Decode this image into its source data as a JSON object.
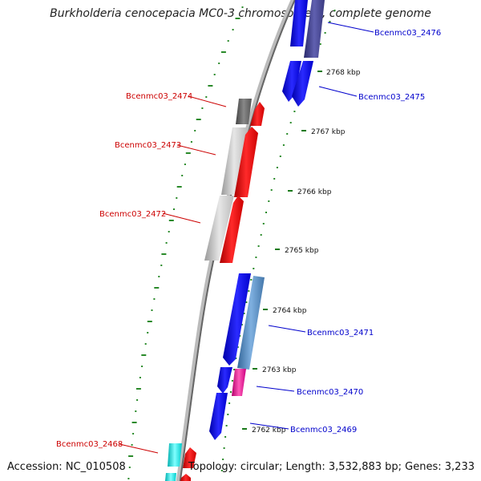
{
  "title": "Burkholderia cenocepacia MC0-3 chromosome 1, complete genome",
  "footer": {
    "accession": "Accession: NC_010508",
    "summary": "Topology: circular; Length: 3,532,883 bp; Genes: 3,233"
  },
  "ticks": [
    {
      "label": "2768 kbp"
    },
    {
      "label": "2767 kbp"
    },
    {
      "label": "2766 kbp"
    },
    {
      "label": "2765 kbp"
    },
    {
      "label": "2764 kbp"
    },
    {
      "label": "2763 kbp"
    },
    {
      "label": "2762 kbp"
    }
  ],
  "genes": [
    {
      "label": "Bcenmc03_2476",
      "strand": "plus",
      "color": "#0000cc"
    },
    {
      "label": "Bcenmc03_2475",
      "strand": "plus",
      "color": "#0000cc"
    },
    {
      "label": "Bcenmc03_2474",
      "strand": "minus",
      "color": "#cc0000"
    },
    {
      "label": "Bcenmc03_2473",
      "strand": "minus",
      "color": "#cc0000"
    },
    {
      "label": "Bcenmc03_2472",
      "strand": "minus",
      "color": "#cc0000"
    },
    {
      "label": "Bcenmc03_2471",
      "strand": "plus",
      "color": "#0000cc"
    },
    {
      "label": "Bcenmc03_2470",
      "strand": "plus",
      "color": "#0000cc"
    },
    {
      "label": "Bcenmc03_2469",
      "strand": "plus",
      "color": "#0000cc"
    },
    {
      "label": "Bcenmc03_2468",
      "strand": "minus",
      "color": "#cc0000"
    }
  ],
  "colors": {
    "backbone": "#888888",
    "dots": "#2a8a2a",
    "forward_cds": "#0000ee",
    "reverse_cds": "#ee0000"
  }
}
